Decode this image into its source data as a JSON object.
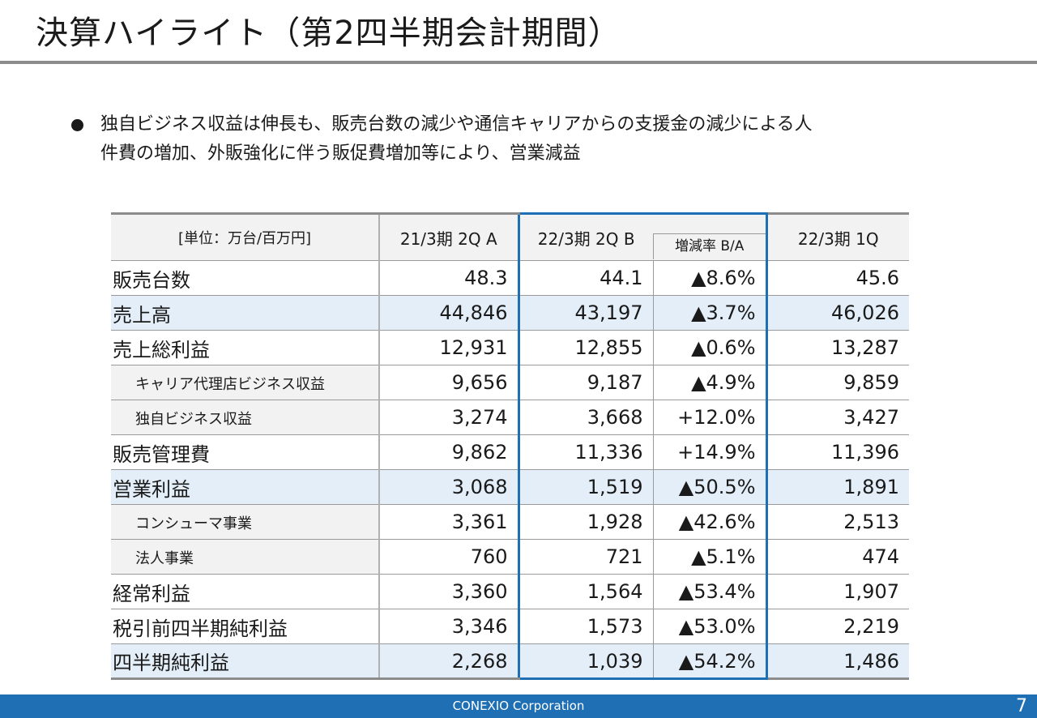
{
  "title": "決算ハイライト（第2四半期会計期間）",
  "bullet": {
    "line1": "独自ビジネス収益は伸長も、販売台数の減少や通信キャリアからの支援金の減少による人",
    "line2": "件費の増加、外販強化に伴う販促費増加等により、営業減益"
  },
  "table": {
    "headers": {
      "unit": "[単位：万台/百万円]",
      "col_a": "21/3期 2Q A",
      "col_b": "22/3期 2Q B",
      "col_ratio": "増減率 B/A",
      "col_q": "22/3期 1Q"
    },
    "rows": [
      {
        "label": "販売台数",
        "a": "48.3",
        "b": "44.1",
        "ratio": "▲8.6%",
        "q": "45.6",
        "style": "white",
        "sub": false
      },
      {
        "label": "売上高",
        "a": "44,846",
        "b": "43,197",
        "ratio": "▲3.7%",
        "q": "46,026",
        "style": "blue",
        "sub": false
      },
      {
        "label": "売上総利益",
        "a": "12,931",
        "b": "12,855",
        "ratio": "▲0.6%",
        "q": "13,287",
        "style": "white",
        "sub": false
      },
      {
        "label": "キャリア代理店ビジネス収益",
        "a": "9,656",
        "b": "9,187",
        "ratio": "▲4.9%",
        "q": "9,859",
        "style": "gray",
        "sub": true
      },
      {
        "label": "独自ビジネス収益",
        "a": "3,274",
        "b": "3,668",
        "ratio": "+12.0%",
        "q": "3,427",
        "style": "gray",
        "sub": true
      },
      {
        "label": "販売管理費",
        "a": "9,862",
        "b": "11,336",
        "ratio": "+14.9%",
        "q": "11,396",
        "style": "white",
        "sub": false
      },
      {
        "label": "営業利益",
        "a": "3,068",
        "b": "1,519",
        "ratio": "▲50.5%",
        "q": "1,891",
        "style": "blue",
        "sub": false
      },
      {
        "label": "コンシューマ事業",
        "a": "3,361",
        "b": "1,928",
        "ratio": "▲42.6%",
        "q": "2,513",
        "style": "gray",
        "sub": true
      },
      {
        "label": "法人事業",
        "a": "760",
        "b": "721",
        "ratio": "▲5.1%",
        "q": "474",
        "style": "gray",
        "sub": true
      },
      {
        "label": "経常利益",
        "a": "3,360",
        "b": "1,564",
        "ratio": "▲53.4%",
        "q": "1,907",
        "style": "white",
        "sub": false
      },
      {
        "label": "税引前四半期純利益",
        "a": "3,346",
        "b": "1,573",
        "ratio": "▲53.0%",
        "q": "2,219",
        "style": "white",
        "sub": false
      },
      {
        "label": "四半期純利益",
        "a": "2,268",
        "b": "1,039",
        "ratio": "▲54.2%",
        "q": "1,486",
        "style": "blue",
        "sub": false
      }
    ]
  },
  "footer": {
    "company": "CONEXIO Corporation",
    "page": "7"
  },
  "colors": {
    "accent": "#1f6fb5",
    "row_highlight": "#e3eef8",
    "row_sub": "#f2f2f2",
    "rule": "#8c8c8c"
  }
}
